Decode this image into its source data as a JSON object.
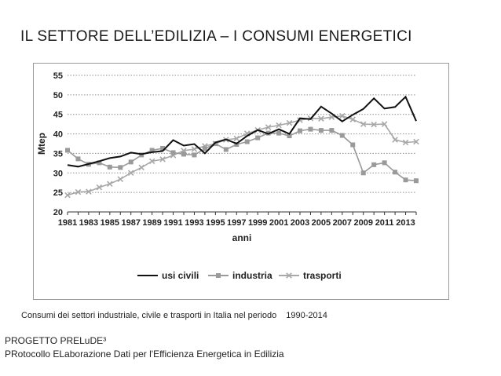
{
  "slide": {
    "title": "IL SETTORE DELL’EDILIZIA – I CONSUMI ENERGETICI",
    "caption": "Consumi dei settori industriale, civile e trasporti in Italia nel periodo",
    "caption_period": "1990-2014",
    "footer_line1": "PROGETTO PRELuDE³",
    "footer_line2": "PRotocollo ELaborazione Dati per l'Efficienza Energetica in Edilizia"
  },
  "chart_data": {
    "type": "line",
    "title": "",
    "xlabel": "anni",
    "ylabel": "Mtep",
    "ylim": [
      20,
      55
    ],
    "yticks": [
      20,
      25,
      30,
      35,
      40,
      45,
      50,
      55
    ],
    "xlim": [
      1981,
      2014
    ],
    "xticks": [
      1981,
      1983,
      1985,
      1987,
      1989,
      1991,
      1993,
      1995,
      1997,
      1999,
      2001,
      2003,
      2005,
      2007,
      2009,
      2011,
      2013
    ],
    "grid": true,
    "legend_position": "bottom",
    "x": [
      1981,
      1982,
      1983,
      1984,
      1985,
      1986,
      1987,
      1988,
      1989,
      1990,
      1991,
      1992,
      1993,
      1994,
      1995,
      1996,
      1997,
      1998,
      1999,
      2000,
      2001,
      2002,
      2003,
      2004,
      2005,
      2006,
      2007,
      2008,
      2009,
      2010,
      2011,
      2012,
      2013,
      2014
    ],
    "series": [
      {
        "name": "usi civili",
        "color": "#111111",
        "marker": "none",
        "values": [
          32.0,
          31.6,
          32.3,
          33.0,
          33.8,
          34.2,
          35.2,
          34.8,
          35.3,
          35.6,
          38.4,
          37.0,
          37.4,
          35.0,
          37.8,
          38.6,
          37.5,
          39.5,
          41.0,
          40.0,
          41.2,
          40.0,
          44.0,
          43.8,
          47.0,
          45.2,
          43.2,
          44.9,
          46.4,
          49.1,
          46.5,
          46.9,
          49.5,
          43.3
        ]
      },
      {
        "name": "industria",
        "color": "#9a9a9a",
        "marker": "square",
        "values": [
          35.8,
          33.6,
          32.2,
          32.6,
          31.5,
          31.4,
          32.8,
          34.6,
          35.8,
          36.3,
          35.2,
          34.8,
          34.6,
          36.2,
          37.5,
          36.0,
          37.3,
          38.0,
          39.0,
          40.2,
          40.2,
          39.5,
          40.8,
          41.2,
          40.9,
          40.9,
          39.6,
          37.2,
          30.0,
          32.1,
          32.6,
          30.2,
          28.2,
          28.0
        ]
      },
      {
        "name": "trasporti",
        "color": "#a8a8a8",
        "marker": "x",
        "values": [
          24.3,
          25.1,
          25.2,
          26.3,
          27.2,
          28.4,
          30.0,
          31.4,
          33.0,
          33.5,
          34.5,
          35.7,
          36.1,
          36.9,
          37.5,
          38.5,
          38.8,
          40.1,
          41.0,
          41.7,
          42.2,
          42.8,
          43.5,
          44.0,
          43.9,
          44.3,
          44.6,
          43.7,
          42.5,
          42.4,
          42.5,
          38.5,
          37.8,
          38.0
        ]
      }
    ]
  }
}
